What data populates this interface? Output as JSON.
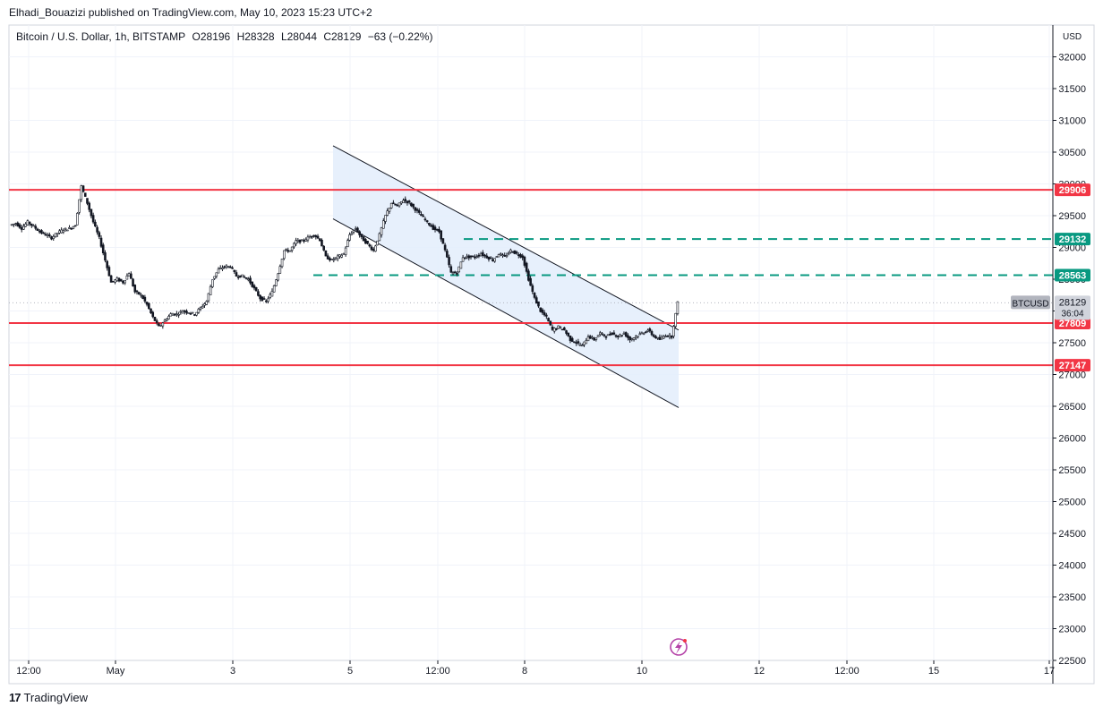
{
  "header": {
    "publisher_line": "Elhadi_Bouazizi published on TradingView.com, May 10, 2023 15:23 UTC+2"
  },
  "legend": {
    "symbol": "Bitcoin / U.S. Dollar, 1h, BITSTAMP",
    "open": "O28196",
    "high": "H28328",
    "low": "L28044",
    "close": "C28129",
    "change": "−63 (−0.22%)"
  },
  "footer": {
    "brand": "TradingView"
  },
  "colors": {
    "resistance": "#f23645",
    "dashed_level": "#089981",
    "channel_fill": "#e3edfc",
    "channel_line": "#131722",
    "candle": "#131722",
    "grid": "#f0f3fa",
    "symbol_tag": "#b2b5be",
    "lightning": "#b543a8"
  },
  "chart_data": {
    "type": "candlestick",
    "symbol": "BTCUSD",
    "currency": "USD",
    "ylim": [
      22500,
      32500
    ],
    "yticks": [
      22500,
      23000,
      23500,
      24000,
      24500,
      25000,
      25500,
      26000,
      26500,
      27000,
      27500,
      28000,
      28500,
      29000,
      29500,
      30000,
      30500,
      31000,
      31500,
      32000
    ],
    "xticks": [
      "12:00",
      "May",
      "3",
      "5",
      "12:00",
      "8",
      "10",
      "12",
      "12:00",
      "15",
      "17"
    ],
    "last_price": {
      "label": "BTCUSD",
      "value": "28129",
      "countdown": "36:04"
    },
    "horizontal_levels": [
      {
        "value": 29906,
        "label": "29906",
        "style": "solid",
        "color": "#f23645"
      },
      {
        "value": 27809,
        "label": "27809",
        "style": "solid",
        "color": "#f23645"
      },
      {
        "value": 27147,
        "label": "27147",
        "style": "solid",
        "color": "#f23645"
      },
      {
        "value": 29132,
        "label": "29132",
        "style": "dashed",
        "color": "#089981"
      },
      {
        "value": 28563,
        "label": "28563",
        "style": "dashed",
        "color": "#089981"
      }
    ],
    "channel": {
      "upper_start": 30600,
      "upper_end": 27700,
      "lower_start": 29450,
      "lower_end": 26480
    },
    "price_path": [
      29350,
      29380,
      29300,
      29400,
      29330,
      29250,
      29200,
      29150,
      29230,
      29280,
      29300,
      29350,
      29960,
      29700,
      29400,
      29150,
      28800,
      28450,
      28500,
      28450,
      28600,
      28300,
      28250,
      28100,
      27900,
      27750,
      27850,
      27950,
      27950,
      28000,
      27980,
      27950,
      28050,
      28150,
      28500,
      28650,
      28700,
      28700,
      28550,
      28550,
      28500,
      28350,
      28200,
      28150,
      28300,
      28600,
      28950,
      28950,
      29100,
      29100,
      29150,
      29200,
      29120,
      28850,
      28800,
      28850,
      28900,
      29200,
      29300,
      29150,
      29050,
      28950,
      29200,
      29500,
      29700,
      29650,
      29750,
      29700,
      29600,
      29500,
      29400,
      29300,
      29250,
      28950,
      28600,
      28600,
      28850,
      28850,
      28850,
      28900,
      28850,
      28800,
      28900,
      28850,
      28950,
      28900,
      28850,
      28500,
      28200,
      28000,
      27900,
      27700,
      27750,
      27700,
      27550,
      27500,
      27450,
      27600,
      27550,
      27650,
      27600,
      27650,
      27600,
      27650,
      27550,
      27600,
      27650,
      27700,
      27600,
      27550,
      27620,
      27600,
      28129
    ]
  }
}
